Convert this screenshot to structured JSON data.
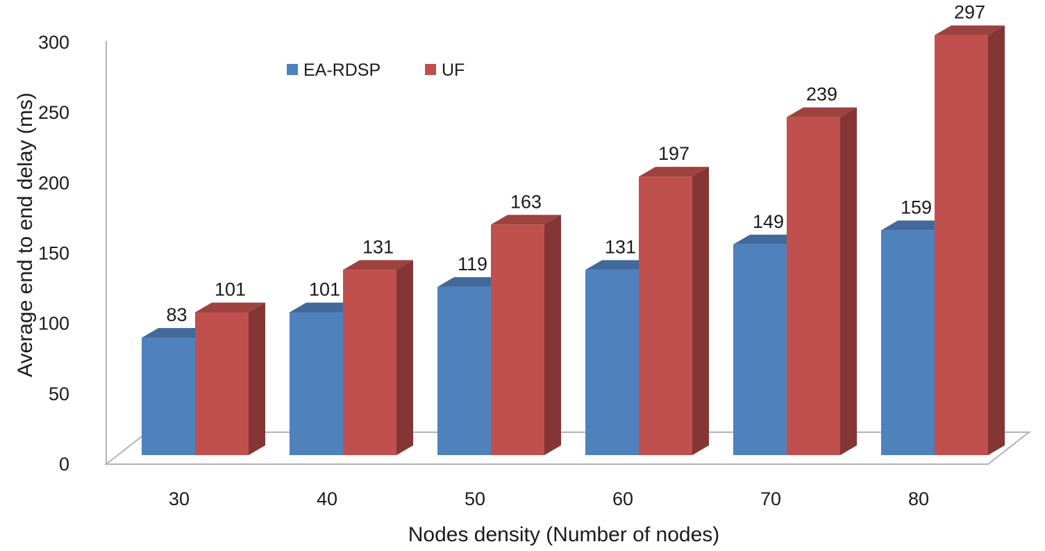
{
  "chart_data": {
    "type": "bar",
    "style": "3d-clustered",
    "categories": [
      "30",
      "40",
      "50",
      "60",
      "70",
      "80"
    ],
    "series": [
      {
        "name": "EA-RDSP",
        "values": [
          83,
          101,
          119,
          131,
          149,
          159
        ],
        "color": "#4F81BD"
      },
      {
        "name": "UF",
        "values": [
          101,
          131,
          163,
          197,
          239,
          297
        ],
        "color": "#C0504D"
      }
    ],
    "xlabel": "Nodes density (Number  of nodes)",
    "ylabel": "Average end to end  delay (ms)",
    "ylim": [
      0,
      300
    ],
    "yticks": [
      0,
      50,
      100,
      150,
      200,
      250,
      300
    ],
    "grid": false,
    "legend_position": "top-left",
    "data_labels": true
  }
}
